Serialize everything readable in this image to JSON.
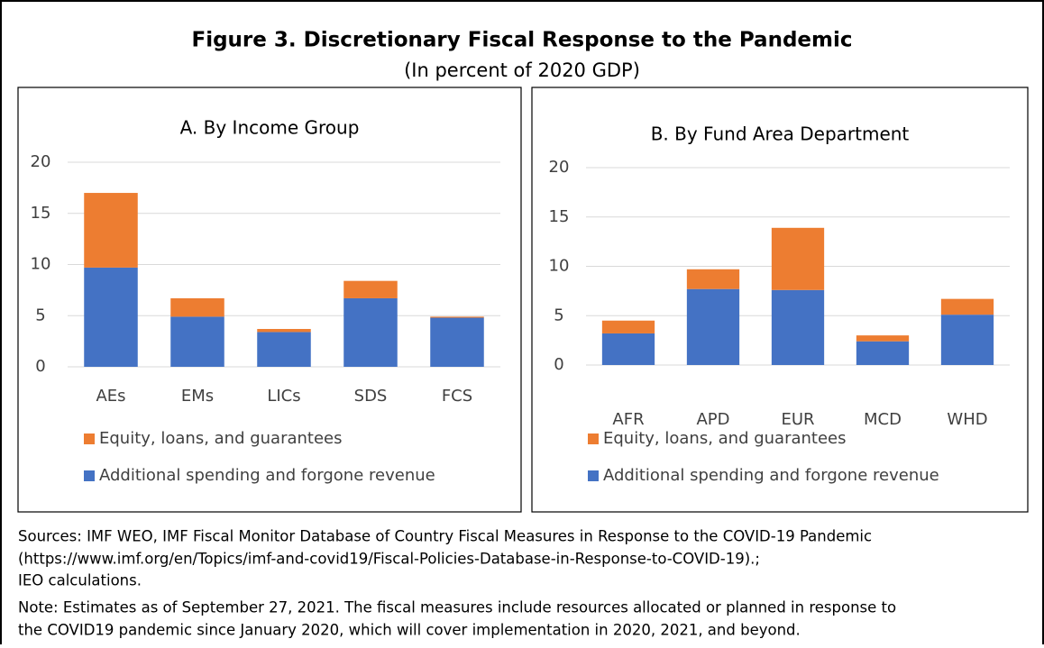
{
  "header": {
    "title": "Figure 3. Discretionary Fiscal Response to the Pandemic",
    "subtitle": "(In percent of 2020 GDP)"
  },
  "chart_data": [
    {
      "type": "stacked_bar",
      "title": "A. By Income Group",
      "categories": [
        "AEs",
        "EMs",
        "LICs",
        "SDS",
        "FCS"
      ],
      "series": [
        {
          "name": "Additional spending and forgone revenue",
          "color": "#4472c4",
          "values": [
            9.7,
            4.9,
            3.4,
            6.7,
            4.8
          ]
        },
        {
          "name": "Equity, loans, and guarantees",
          "color": "#ed7d31",
          "values": [
            7.3,
            1.8,
            0.3,
            1.7,
            0.1
          ]
        }
      ],
      "ylim": [
        0,
        20
      ],
      "yticks": [
        0,
        5,
        10,
        15,
        20
      ],
      "grid": true
    },
    {
      "type": "stacked_bar",
      "title": "B. By Fund Area Department",
      "categories": [
        "AFR",
        "APD",
        "EUR",
        "MCD",
        "WHD"
      ],
      "series": [
        {
          "name": "Additional spending and forgone revenue",
          "color": "#4472c4",
          "values": [
            3.2,
            7.7,
            7.6,
            2.4,
            5.1
          ]
        },
        {
          "name": "Equity, loans, and guarantees",
          "color": "#ed7d31",
          "values": [
            1.3,
            2.0,
            6.3,
            0.6,
            1.6
          ]
        }
      ],
      "ylim": [
        0,
        20
      ],
      "yticks": [
        0,
        5,
        10,
        15,
        20
      ],
      "grid": true
    }
  ],
  "footer": {
    "sources": [
      "Sources: IMF WEO, IMF Fiscal Monitor Database of Country Fiscal Measures in Response to the COVID-19 Pandemic",
      "(https://www.imf.org/en/Topics/imf-and-covid19/Fiscal-Policies-Database-in-Response-to-COVID-19).;",
      "IEO calculations."
    ],
    "note": [
      "Note: Estimates as of September 27, 2021. The fiscal measures include resources allocated or planned in response to",
      "the COVID19 pandemic since January 2020, which will cover implementation in 2020, 2021, and beyond."
    ]
  }
}
